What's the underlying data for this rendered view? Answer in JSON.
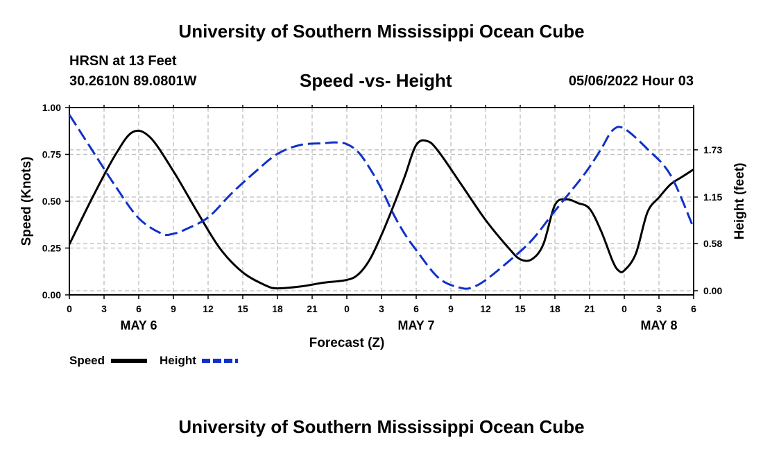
{
  "header": {
    "main_title": "University of Southern Mississippi Ocean Cube",
    "station": "HRSN at 13 Feet",
    "coords": "30.2610N  89.0801W",
    "timestamp": "05/06/2022 Hour 03",
    "footer_title": "University of Southern Mississippi Ocean Cube"
  },
  "chart_data": {
    "type": "line",
    "title": "Speed -vs- Height",
    "xlabel": "Forecast (Z)",
    "ylabel_left": "Speed (Knots)",
    "ylabel_right": "Height (feet)",
    "x_tick_labels": [
      "0",
      "3",
      "6",
      "9",
      "12",
      "15",
      "18",
      "21",
      "0",
      "3",
      "6",
      "9",
      "12",
      "15",
      "18",
      "21",
      "0",
      "3",
      "6"
    ],
    "x_range_hours": [
      0,
      54
    ],
    "date_labels": [
      {
        "hour": 6,
        "text": "MAY 6"
      },
      {
        "hour": 30,
        "text": "MAY 7"
      },
      {
        "hour": 51,
        "text": "MAY 8"
      }
    ],
    "ylim_left": [
      0,
      1
    ],
    "ylim_right": [
      0,
      2.3
    ],
    "y_left_ticks": [
      {
        "value": 0,
        "label": "0.00"
      },
      {
        "value": 0.25,
        "label": "0.25"
      },
      {
        "value": 0.5,
        "label": "0.50"
      },
      {
        "value": 0.75,
        "label": "0.75"
      },
      {
        "value": 1.0,
        "label": "1.00"
      }
    ],
    "y_right_ticks": [
      {
        "value": 0.0,
        "label": "0.00"
      },
      {
        "value": 0.58,
        "label": "0.58"
      },
      {
        "value": 1.15,
        "label": "1.15"
      },
      {
        "value": 1.73,
        "label": "1.73"
      }
    ],
    "grid": true,
    "legend_placement": "bottom-left",
    "series": [
      {
        "name": "Speed",
        "axis": "left",
        "color": "#000000",
        "style": "solid",
        "x": [
          0,
          2,
          4,
          5.5,
          7,
          9,
          11,
          13,
          15,
          17,
          18,
          20,
          22,
          24,
          25,
          26,
          27,
          28,
          29,
          30,
          31,
          32,
          34,
          36,
          38,
          39,
          40,
          41,
          42,
          43,
          44,
          45,
          46,
          47,
          47.5,
          48,
          49,
          50,
          51,
          52,
          53,
          54
        ],
        "y": [
          0.27,
          0.52,
          0.75,
          0.87,
          0.84,
          0.66,
          0.45,
          0.25,
          0.12,
          0.05,
          0.035,
          0.045,
          0.065,
          0.08,
          0.11,
          0.19,
          0.32,
          0.47,
          0.63,
          0.8,
          0.82,
          0.76,
          0.58,
          0.4,
          0.25,
          0.19,
          0.19,
          0.27,
          0.48,
          0.51,
          0.49,
          0.46,
          0.34,
          0.18,
          0.13,
          0.13,
          0.22,
          0.44,
          0.52,
          0.59,
          0.63,
          0.67
        ]
      },
      {
        "name": "Height",
        "axis": "right",
        "color": "#1030c8",
        "style": "dashed",
        "x": [
          0,
          2,
          4,
          6,
          8,
          9,
          10,
          12,
          14,
          16,
          18,
          20,
          22,
          23,
          24,
          25,
          26,
          27,
          28,
          29,
          30,
          32,
          34,
          35,
          36,
          38,
          40,
          42,
          44,
          45,
          46,
          47,
          48,
          50,
          52,
          54
        ],
        "y": [
          2.16,
          1.72,
          1.28,
          0.89,
          0.7,
          0.7,
          0.75,
          0.9,
          1.19,
          1.45,
          1.68,
          1.79,
          1.81,
          1.82,
          1.8,
          1.7,
          1.5,
          1.25,
          0.95,
          0.7,
          0.5,
          0.15,
          0.03,
          0.05,
          0.13,
          0.36,
          0.62,
          0.98,
          1.33,
          1.52,
          1.74,
          1.97,
          1.99,
          1.74,
          1.42,
          0.77
        ]
      }
    ]
  }
}
